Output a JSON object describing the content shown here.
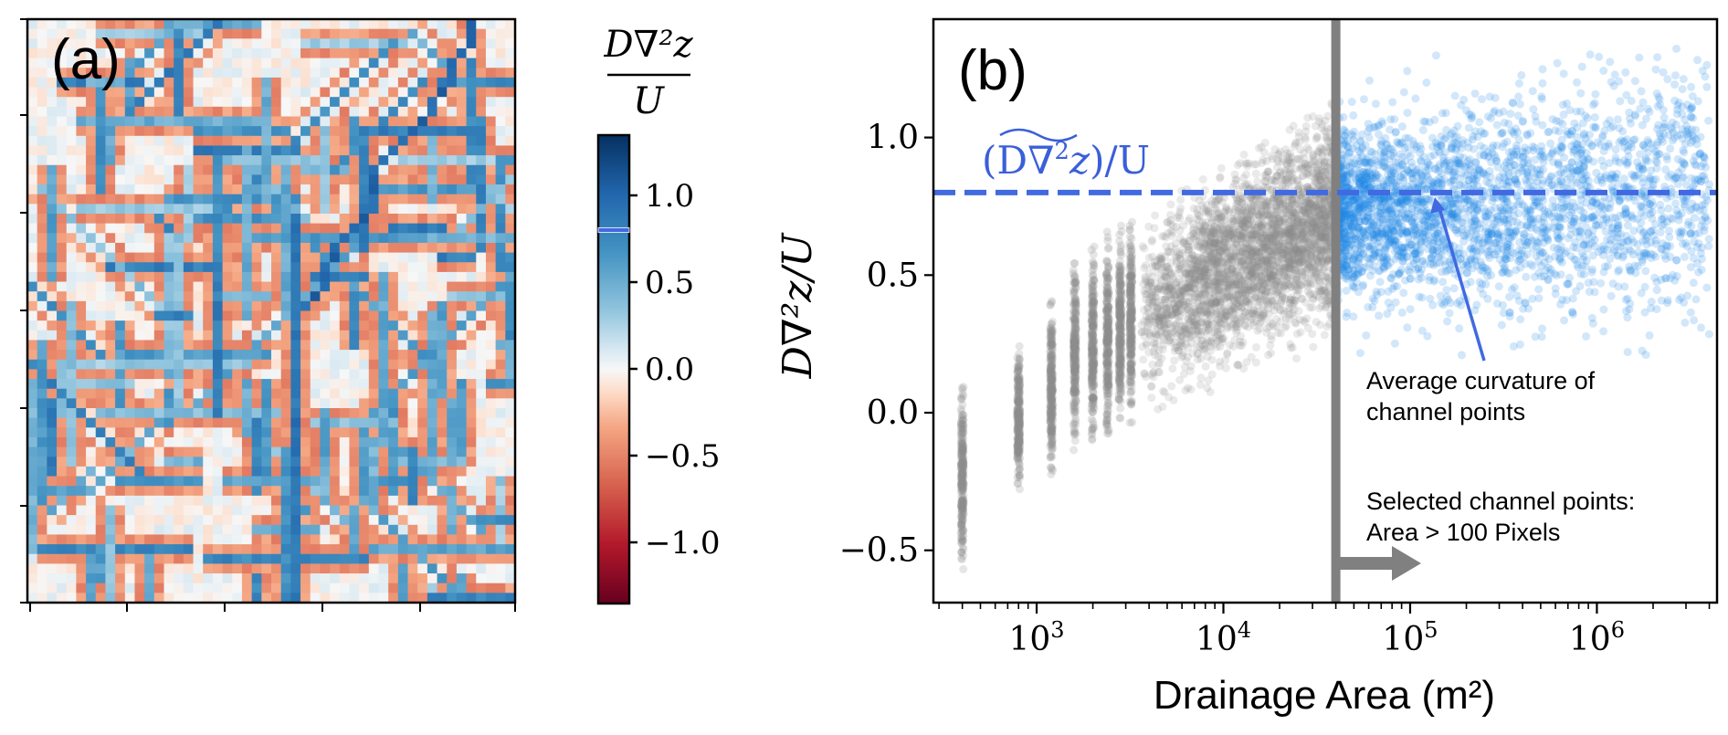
{
  "chart_data": [
    {
      "type": "heatmap",
      "panel_label": "(a)",
      "colorbar": {
        "title_numerator": "D∇²z",
        "title_denominator": "U",
        "colormap": "RdBu",
        "range": [
          -1.35,
          1.35
        ],
        "ticks": [
          1.0,
          0.5,
          0.0,
          -0.5,
          -1.0
        ],
        "tick_labels": [
          "1.0",
          "0.5",
          "0.0",
          "−0.5",
          "−1.0"
        ],
        "marker_value": 0.8,
        "marker_color": "#4169e1"
      },
      "grid": {
        "columns": 50,
        "rows": 60
      },
      "axis_tick_labels_shown": false
    },
    {
      "type": "scatter",
      "panel_label": "(b)",
      "xlabel": "Drainage Area (m²)",
      "ylabel": "D∇²z/U",
      "xscale": "log",
      "xlim": [
        280,
        4400000
      ],
      "ylim": [
        -0.69,
        1.43
      ],
      "xticks": [
        {
          "value": 1000,
          "base": "10",
          "exp": "3"
        },
        {
          "value": 10000,
          "base": "10",
          "exp": "4"
        },
        {
          "value": 100000,
          "base": "10",
          "exp": "5"
        },
        {
          "value": 1000000,
          "base": "10",
          "exp": "6"
        }
      ],
      "yticks": [
        {
          "value": 1.0,
          "label": "1.0"
        },
        {
          "value": 0.5,
          "label": "0.5"
        },
        {
          "value": 0.0,
          "label": "0.0"
        },
        {
          "value": -0.5,
          "label": "−0.5"
        }
      ],
      "series": [
        {
          "role": "all points (area ≤ threshold)",
          "color": "#8c8c8c",
          "discrete_columns": [
            {
              "area": 400,
              "y_range": [
                -0.6,
                0.15
              ]
            },
            {
              "area": 800,
              "y_range": [
                -0.29,
                0.25
              ]
            },
            {
              "area": 1200,
              "y_range": [
                -0.23,
                0.41
              ]
            },
            {
              "area": 1600,
              "y_range": [
                -0.14,
                0.56
              ]
            },
            {
              "area": 2000,
              "y_range": [
                -0.13,
                0.61
              ]
            },
            {
              "area": 2400,
              "y_range": [
                -0.11,
                0.66
              ]
            },
            {
              "area": 2800,
              "y_range": [
                -0.07,
                0.68
              ]
            },
            {
              "area": 3200,
              "y_range": [
                -0.04,
                0.7
              ]
            }
          ],
          "cloud": {
            "x_range": [
              3600,
              40000
            ],
            "lower_y": [
              0.0,
              0.3
            ],
            "upper_y": [
              0.72,
              1.15
            ]
          }
        },
        {
          "role": "selected channel points",
          "color": "#1e88e5",
          "cloud": {
            "x_range": [
              40000,
              4000000
            ],
            "y_range": [
              0.2,
              1.33
            ],
            "center_y": 0.8
          }
        }
      ],
      "threshold_area": 40000,
      "threshold_color": "#808080",
      "mean_line": {
        "value": 0.8,
        "color": "#4169e1",
        "style": "dashed",
        "label_prefix": "(D",
        "label_nabla": "∇",
        "label_sup": "2",
        "label_z": "z",
        "label_suffix": ")/U"
      },
      "annotations": {
        "average_line1": "Average curvature of",
        "average_line2": "channel points",
        "selected_line1": "Selected channel points:",
        "selected_line2": "Area > 100 Pixels"
      }
    }
  ]
}
